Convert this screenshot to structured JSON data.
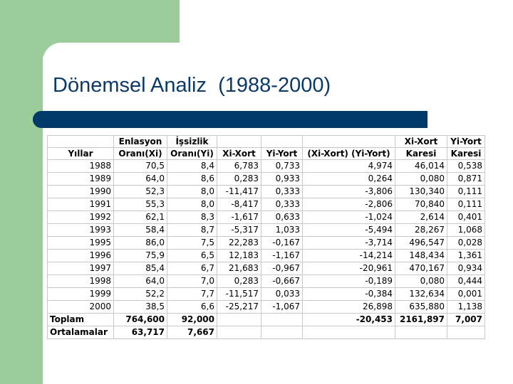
{
  "slide": {
    "title": "Dönemsel Analiz  (1988-2000)"
  },
  "table": {
    "headers": {
      "row1": [
        "",
        "Enlasyon",
        "İşsizlik",
        "",
        "",
        "",
        "Xi-Xort",
        "Yi-Yort"
      ],
      "row2": [
        "Yıllar",
        "Oranı(Xi)",
        "Oranı(Yi)",
        "Xi-Xort",
        "Yi-Yort",
        "(Xi-Xort) (Yi-Yort)",
        "Karesi",
        "Karesi"
      ]
    },
    "rows": [
      [
        "1988",
        "70,5",
        "8,4",
        "6,783",
        "0,733",
        "4,974",
        "46,014",
        "0,538"
      ],
      [
        "1989",
        "64,0",
        "8,6",
        "0,283",
        "0,933",
        "0,264",
        "0,080",
        "0,871"
      ],
      [
        "1990",
        "52,3",
        "8,0",
        "-11,417",
        "0,333",
        "-3,806",
        "130,340",
        "0,111"
      ],
      [
        "1991",
        "55,3",
        "8,0",
        "-8,417",
        "0,333",
        "-2,806",
        "70,840",
        "0,111"
      ],
      [
        "1992",
        "62,1",
        "8,3",
        "-1,617",
        "0,633",
        "-1,024",
        "2,614",
        "0,401"
      ],
      [
        "1993",
        "58,4",
        "8,7",
        "-5,317",
        "1,033",
        "-5,494",
        "28,267",
        "1,068"
      ],
      [
        "1995",
        "86,0",
        "7,5",
        "22,283",
        "-0,167",
        "-3,714",
        "496,547",
        "0,028"
      ],
      [
        "1996",
        "75,9",
        "6,5",
        "12,183",
        "-1,167",
        "-14,214",
        "148,434",
        "1,361"
      ],
      [
        "1997",
        "85,4",
        "6,7",
        "21,683",
        "-0,967",
        "-20,961",
        "470,167",
        "0,934"
      ],
      [
        "1998",
        "64,0",
        "7,0",
        "0,283",
        "-0,667",
        "-0,189",
        "0,080",
        "0,444"
      ],
      [
        "1999",
        "52,2",
        "7,7",
        "-11,517",
        "0,033",
        "-0,384",
        "132,634",
        "0,001"
      ],
      [
        "2000",
        "38,5",
        "6,6",
        "-25,217",
        "-1,067",
        "26,898",
        "635,880",
        "1,138"
      ]
    ],
    "total": [
      "Toplam",
      "764,600",
      "92,000",
      "",
      "",
      "-20,453",
      "2161,897",
      "7,007"
    ],
    "average": [
      "Ortalamalar",
      "63,717",
      "7,667",
      "",
      "",
      "",
      "",
      ""
    ]
  }
}
